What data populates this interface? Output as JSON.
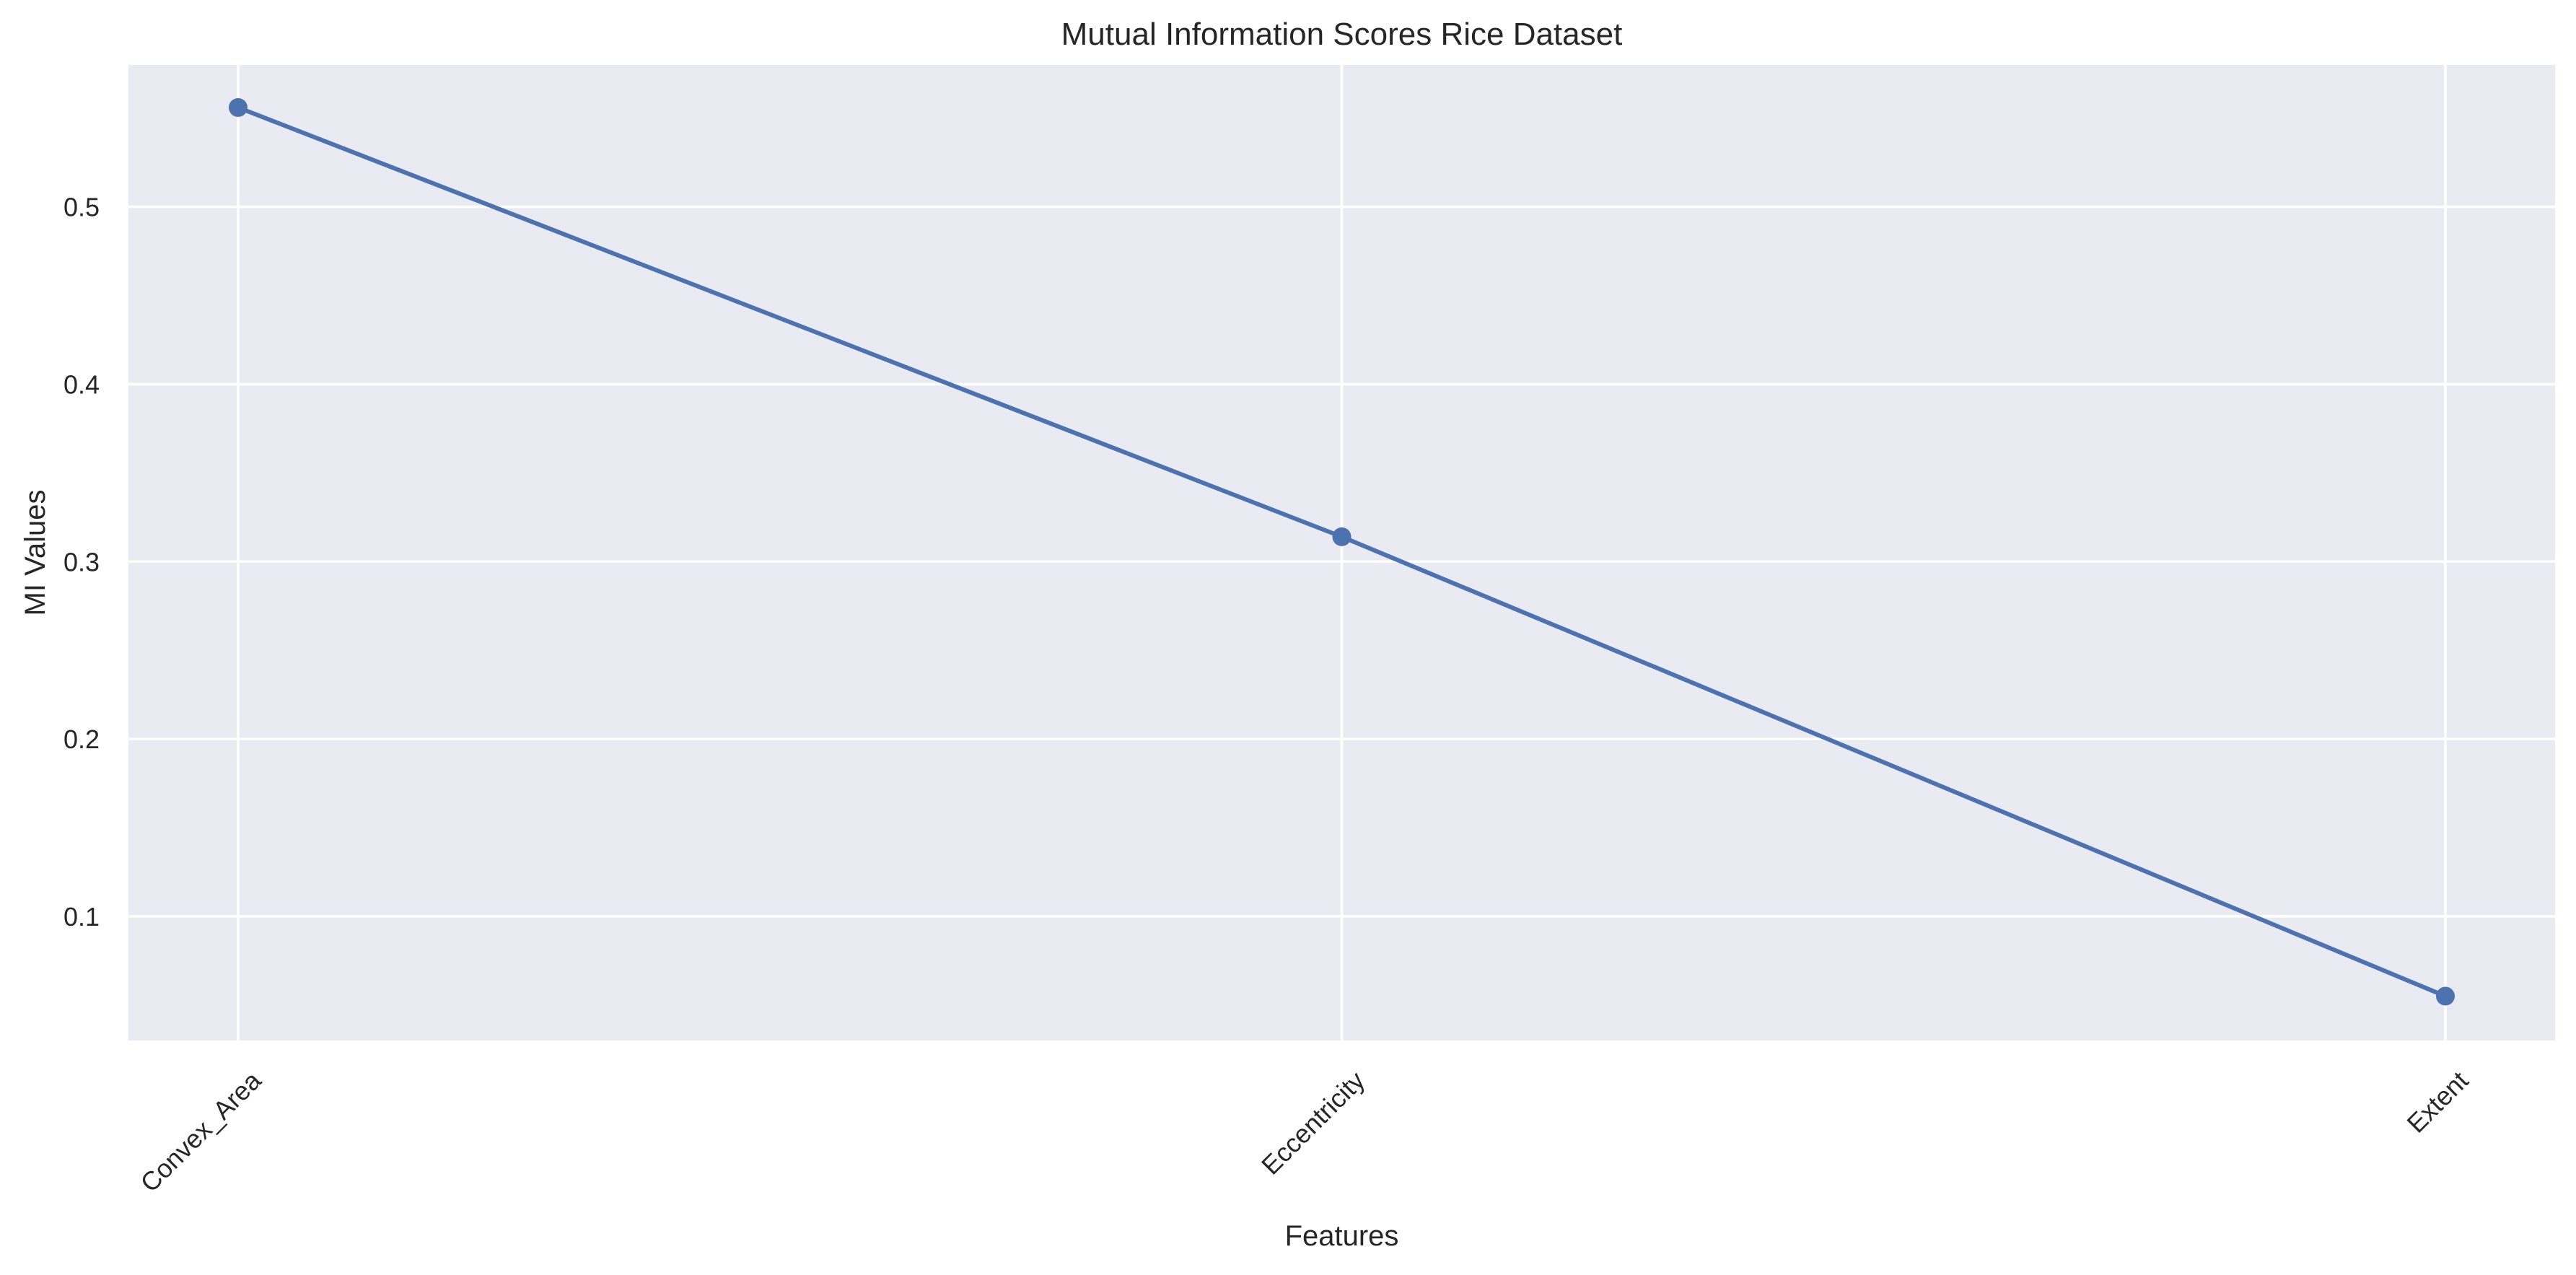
{
  "chart_data": {
    "type": "line",
    "title": "Mutual Information Scores Rice Dataset",
    "xlabel": "Features",
    "ylabel": "MI Values",
    "categories": [
      "Convex_Area",
      "Eccentricity",
      "Extent"
    ],
    "series": [
      {
        "values": [
          0.556,
          0.314,
          0.055
        ],
        "color": "#4c72b0",
        "marker": "circle"
      }
    ],
    "ylim": [
      0.03,
      0.58
    ],
    "yticks": [
      0.1,
      0.2,
      0.3,
      0.4,
      0.5
    ],
    "ytick_labels": [
      "0.1",
      "0.2",
      "0.3",
      "0.4",
      "0.5"
    ],
    "xtick_rotation": -45,
    "grid": true,
    "background": "#eaeaf2",
    "legend": false
  }
}
